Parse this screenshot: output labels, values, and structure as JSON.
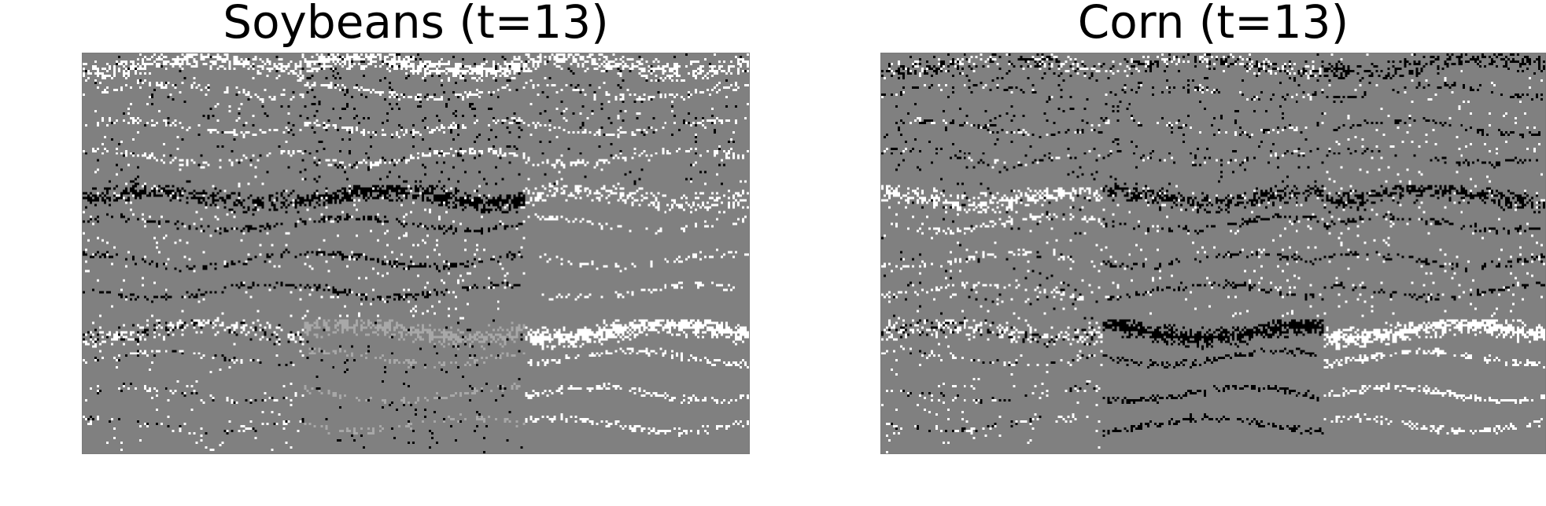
{
  "panels": [
    {
      "title": "Soybeans (t=13)",
      "colors": {
        "background": "#808080",
        "light": "#ffffff",
        "dark": "#000000",
        "mid": "#a8a8a8"
      },
      "grid": {
        "rows": 3,
        "cols": 3
      },
      "tiles": [
        [
          "white-top",
          "white-top-strong",
          "white-top"
        ],
        [
          "black-top",
          "black-top-strong",
          "white-sparse"
        ],
        [
          "mixed-white",
          "light-gray",
          "white-solid"
        ]
      ]
    },
    {
      "title": "Corn (t=13)",
      "colors": {
        "background": "#808080",
        "light": "#ffffff",
        "dark": "#000000",
        "mid": "#a8a8a8"
      },
      "grid": {
        "rows": 3,
        "cols": 3
      },
      "tiles": [
        [
          "mixed-dark",
          "mixed-dark",
          "black-sparse"
        ],
        [
          "white-top",
          "black-top",
          "black-top"
        ],
        [
          "mixed-white",
          "black-solid",
          "white-solid"
        ]
      ]
    }
  ]
}
